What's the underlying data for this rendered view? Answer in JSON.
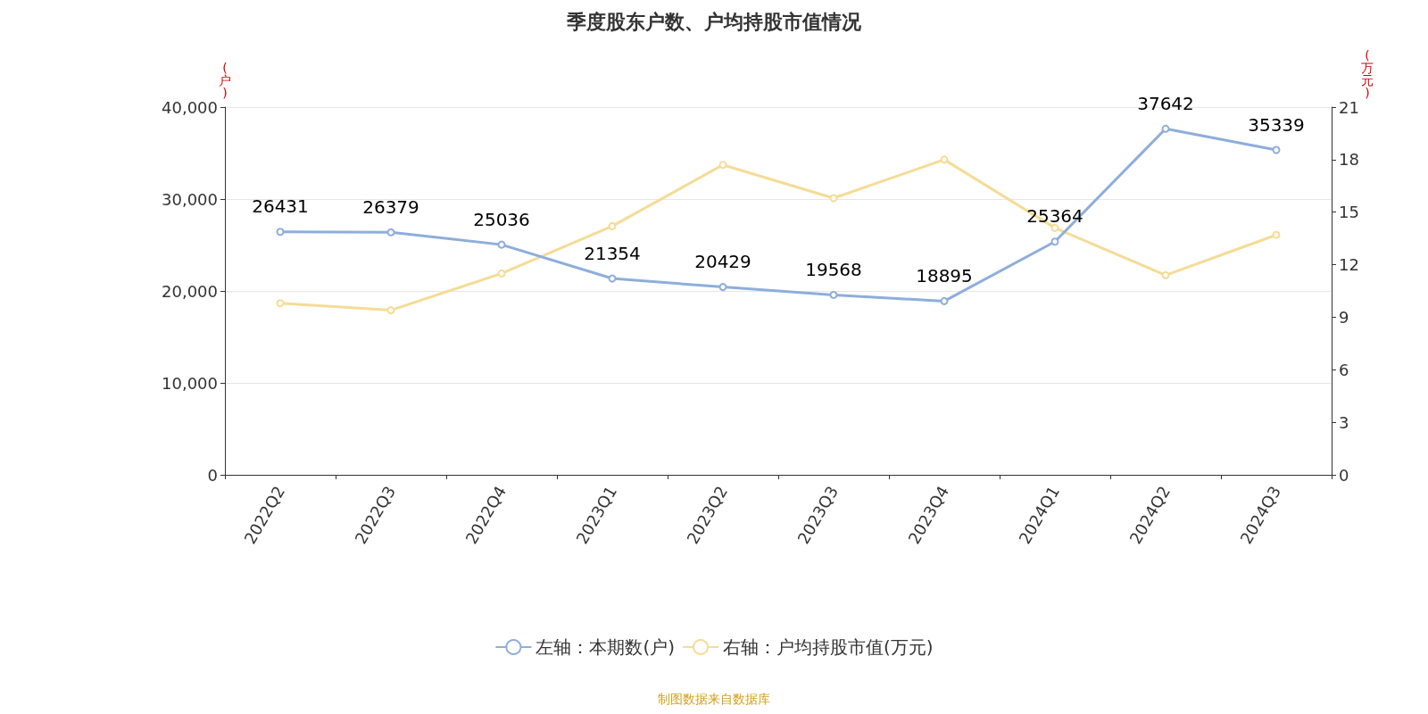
{
  "chart_data": {
    "type": "line",
    "title": "季度股东户数、户均持股市值情况",
    "categories": [
      "2022Q2",
      "2022Q3",
      "2022Q4",
      "2023Q1",
      "2023Q2",
      "2023Q3",
      "2023Q4",
      "2024Q1",
      "2024Q2",
      "2024Q3"
    ],
    "series": [
      {
        "name": "左轴：本期数(户)",
        "color": "#8eaedb",
        "values": [
          26431,
          26379,
          25036,
          21354,
          20429,
          19568,
          18895,
          25364,
          37642,
          35339
        ],
        "value_labels": [
          "26431",
          "26379",
          "25036",
          "21354",
          "20429",
          "19568",
          "18895",
          "25364",
          "37642",
          "35339"
        ]
      },
      {
        "name": "右轴：户均持股市值(万元)",
        "color": "#f5dc96",
        "axis": "y2",
        "values": [
          9.8,
          9.4,
          11.5,
          14.2,
          17.7,
          15.8,
          18.0,
          14.1,
          11.4,
          13.7
        ]
      }
    ],
    "ylabel": "(户)",
    "y2label": "(万元)",
    "ylim": [
      0,
      40000
    ],
    "yticks": [
      0,
      {
        "value": 10000,
        "label": "10,000"
      },
      {
        "value": 20000,
        "label": "20,000"
      },
      {
        "value": 30000,
        "label": "30,000"
      },
      {
        "value": 40000,
        "label": "40,000"
      }
    ],
    "y2lim": [
      0,
      21
    ],
    "y2ticks": [
      0,
      3,
      6,
      9,
      12,
      15,
      18,
      21
    ],
    "grid": "y",
    "legend": "bottom",
    "marker": "circle",
    "line_style": "solid",
    "annotations": [
      "制图数据来自数据库"
    ]
  }
}
